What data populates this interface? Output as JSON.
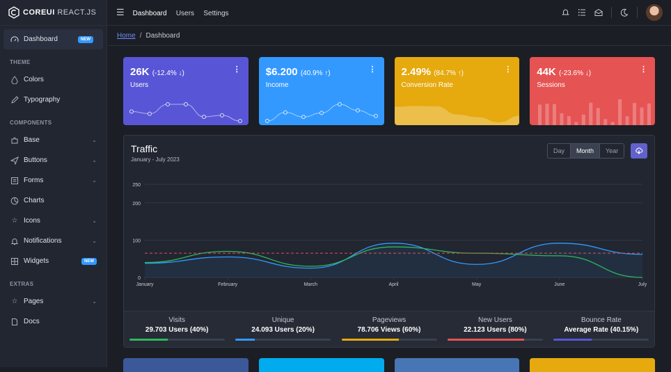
{
  "brand": {
    "name": "COREUI",
    "suffix": "REACT.JS"
  },
  "sidebar": {
    "dashboard": {
      "label": "Dashboard",
      "badge": "NEW"
    },
    "theme_title": "THEME",
    "theme_items": [
      {
        "label": "Colors"
      },
      {
        "label": "Typography"
      }
    ],
    "components_title": "COMPONENTS",
    "components_items": [
      {
        "label": "Base"
      },
      {
        "label": "Buttons"
      },
      {
        "label": "Forms"
      },
      {
        "label": "Charts"
      },
      {
        "label": "Icons"
      },
      {
        "label": "Notifications"
      },
      {
        "label": "Widgets",
        "badge": "NEW"
      }
    ],
    "extras_title": "EXTRAS",
    "extras_items": [
      {
        "label": "Pages"
      },
      {
        "label": "Docs"
      }
    ]
  },
  "header": {
    "nav": [
      "Dashboard",
      "Users",
      "Settings"
    ]
  },
  "breadcrumb": {
    "home": "Home",
    "current": "Dashboard"
  },
  "widgets": [
    {
      "value": "26K",
      "delta": "(-12.4% ↓)",
      "label": "Users",
      "color": "#5856d6",
      "points": [
        65,
        59,
        84,
        84,
        51,
        55,
        40
      ]
    },
    {
      "value": "$6.200",
      "delta": "(40.9% ↑)",
      "label": "Income",
      "color": "#3399ff",
      "points": [
        1,
        18,
        9,
        17,
        34,
        22,
        11
      ]
    },
    {
      "value": "2.49%",
      "delta": "(84.7% ↑)",
      "label": "Conversion Rate",
      "color": "#e6a90e",
      "points": [
        78,
        81,
        80,
        45,
        34,
        12,
        40
      ]
    },
    {
      "value": "44K",
      "delta": "(-23.6% ↓)",
      "label": "Sessions",
      "color": "#e55353",
      "points": [
        78,
        81,
        80,
        45,
        34,
        12,
        40,
        85,
        65,
        23,
        12,
        98,
        34,
        84,
        67,
        82
      ]
    }
  ],
  "traffic": {
    "title": "Traffic",
    "subtitle": "January - July 2023",
    "periods": [
      "Day",
      "Month",
      "Year"
    ],
    "active_period": "Month"
  },
  "chart_data": {
    "type": "line",
    "categories": [
      "January",
      "February",
      "March",
      "April",
      "May",
      "June",
      "July"
    ],
    "ylim": [
      0,
      250
    ],
    "yticks": [
      0,
      100,
      200,
      250
    ],
    "series": [
      {
        "color": "#3399ff",
        "fill": true,
        "values": [
          38,
          55,
          25,
          92,
          35,
          92,
          62
        ]
      },
      {
        "color": "#2eb85c",
        "values": [
          40,
          70,
          30,
          82,
          65,
          58,
          0
        ]
      },
      {
        "color": "#e55353",
        "dashed": true,
        "values": [
          65,
          65,
          65,
          65,
          65,
          65,
          65
        ]
      }
    ],
    "grid": true
  },
  "stats": [
    {
      "label": "Visits",
      "value": "29.703 Users (40%)",
      "percent": 40,
      "color": "#2eb85c"
    },
    {
      "label": "Unique",
      "value": "24.093 Users (20%)",
      "percent": 20,
      "color": "#3399ff"
    },
    {
      "label": "Pageviews",
      "value": "78.706 Views (60%)",
      "percent": 60,
      "color": "#e6a90e"
    },
    {
      "label": "New Users",
      "value": "22.123 Users (80%)",
      "percent": 80,
      "color": "#e55353"
    },
    {
      "label": "Bounce Rate",
      "value": "Average Rate (40.15%)",
      "percent": 40.15,
      "color": "#5856d6"
    }
  ],
  "bottom_card_colors": [
    "#3b5998",
    "#00aced",
    "#4875b4",
    "#e6a90e"
  ]
}
